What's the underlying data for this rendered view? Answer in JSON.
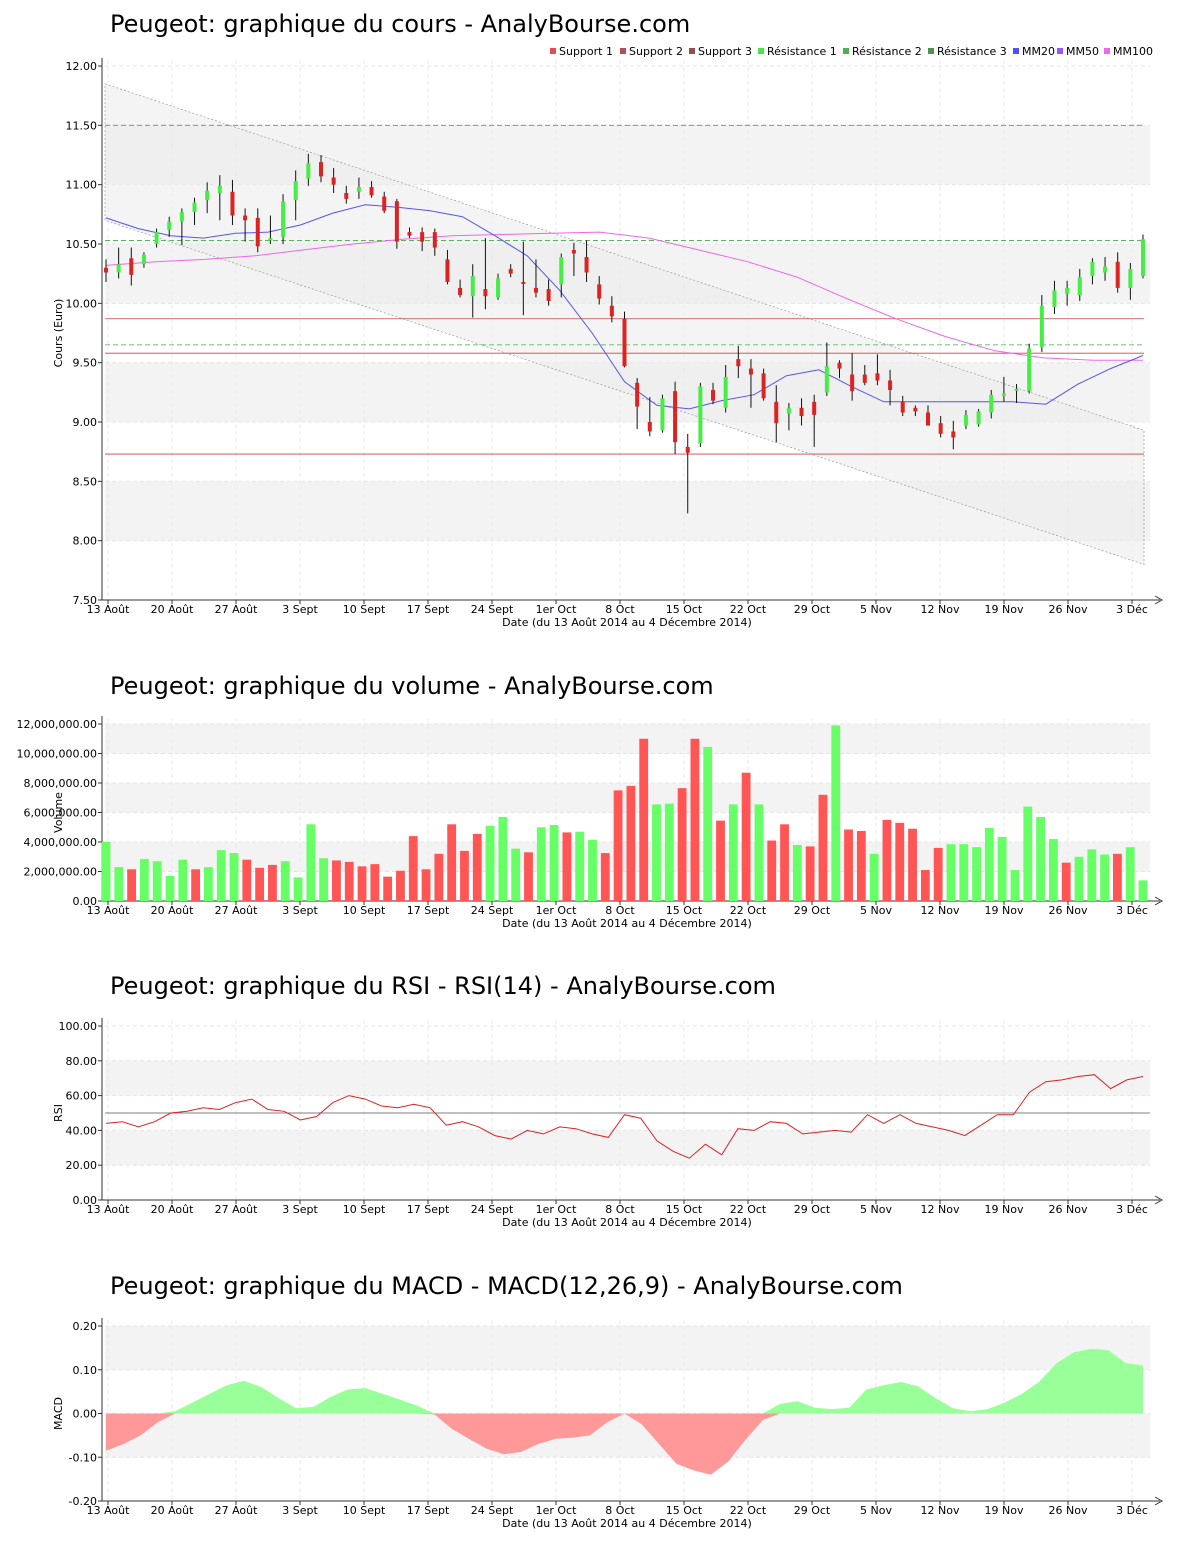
{
  "titles": {
    "price": "Peugeot: graphique du cours - AnalyBourse.com",
    "volume": "Peugeot: graphique du volume - AnalyBourse.com",
    "rsi": "Peugeot: graphique du RSI - RSI(14) - AnalyBourse.com",
    "macd": "Peugeot: graphique du MACD - MACD(12,26,9) - AnalyBourse.com"
  },
  "xlabel": "Date (du 13 Août 2014 au 4 Décembre 2014)",
  "date_ticks": [
    "13 Août",
    "20 Août",
    "27 Août",
    "3 Sept",
    "10 Sept",
    "17 Sept",
    "24 Sept",
    "1er Oct",
    "8 Oct",
    "15 Oct",
    "22 Oct",
    "29 Oct",
    "5 Nov",
    "12 Nov",
    "19 Nov",
    "26 Nov",
    "3 Déc"
  ],
  "legend": [
    {
      "label": "Support 1",
      "color": "#e05050"
    },
    {
      "label": "Support 2",
      "color": "#b05050"
    },
    {
      "label": "Support 3",
      "color": "#905050"
    },
    {
      "label": "Résistance 1",
      "color": "#50e050"
    },
    {
      "label": "Résistance 2",
      "color": "#50b050"
    },
    {
      "label": "Résistance 3",
      "color": "#509050"
    },
    {
      "label": "MM20",
      "color": "#5050ff"
    },
    {
      "label": "MM50",
      "color": "#9955ff"
    },
    {
      "label": "MM100",
      "color": "#ee66ee"
    }
  ],
  "colors": {
    "up": "#44ee44",
    "down": "#dd2222",
    "vol_up": "#66ff66",
    "vol_down": "#ff5555",
    "macd_pos": "#99ff99",
    "macd_neg": "#ff9999",
    "rsi_line": "#dd2222",
    "mm20": "#5555ee",
    "mm100": "#ee66ee"
  },
  "chart_data": [
    {
      "type": "candlestick",
      "title": "Peugeot: graphique du cours - AnalyBourse.com",
      "ylabel": "Cours (Euro)",
      "ylim": [
        7.5,
        12.0
      ],
      "yticks": [
        "7.50",
        "8.00",
        "8.50",
        "9.00",
        "9.50",
        "10.00",
        "10.50",
        "11.00",
        "11.50",
        "12.00"
      ],
      "support": [
        9.87,
        9.58,
        8.73
      ],
      "resistance": [
        11.5,
        10.53,
        9.65
      ],
      "ohlc": [
        [
          10.3,
          10.37,
          10.18,
          10.26
        ],
        [
          10.26,
          10.47,
          10.21,
          10.33
        ],
        [
          10.38,
          10.47,
          10.15,
          10.24
        ],
        [
          10.33,
          10.43,
          10.3,
          10.41
        ],
        [
          10.5,
          10.63,
          10.47,
          10.6
        ],
        [
          10.62,
          10.73,
          10.56,
          10.69
        ],
        [
          10.69,
          10.8,
          10.49,
          10.77
        ],
        [
          10.77,
          10.89,
          10.66,
          10.85
        ],
        [
          10.87,
          11.02,
          10.76,
          10.95
        ],
        [
          10.93,
          11.08,
          10.7,
          10.99
        ],
        [
          10.94,
          11.04,
          10.66,
          10.74
        ],
        [
          10.74,
          10.8,
          10.52,
          10.7
        ],
        [
          10.72,
          10.8,
          10.43,
          10.48
        ],
        [
          10.53,
          10.74,
          10.5,
          10.55
        ],
        [
          10.56,
          10.92,
          10.5,
          10.86
        ],
        [
          10.87,
          11.12,
          10.7,
          11.03
        ],
        [
          11.05,
          11.26,
          10.99,
          11.18
        ],
        [
          11.19,
          11.25,
          11.02,
          11.07
        ],
        [
          11.06,
          11.14,
          10.93,
          11.0
        ],
        [
          10.93,
          10.99,
          10.84,
          10.88
        ],
        [
          10.94,
          11.06,
          10.88,
          10.98
        ],
        [
          10.98,
          11.03,
          10.89,
          10.91
        ],
        [
          10.9,
          10.94,
          10.76,
          10.78
        ],
        [
          10.86,
          10.88,
          10.46,
          10.52
        ],
        [
          10.6,
          10.64,
          10.55,
          10.57
        ],
        [
          10.6,
          10.64,
          10.44,
          10.52
        ],
        [
          10.6,
          10.63,
          10.4,
          10.47
        ],
        [
          10.37,
          10.45,
          10.16,
          10.18
        ],
        [
          10.13,
          10.2,
          10.05,
          10.07
        ],
        [
          10.06,
          10.33,
          9.88,
          10.23
        ],
        [
          10.12,
          10.55,
          9.95,
          10.06
        ],
        [
          10.05,
          10.25,
          10.03,
          10.21
        ],
        [
          10.29,
          10.33,
          10.22,
          10.25
        ],
        [
          10.18,
          10.52,
          9.9,
          10.17
        ],
        [
          10.13,
          10.37,
          10.05,
          10.09
        ],
        [
          10.12,
          10.2,
          9.98,
          10.02
        ],
        [
          10.16,
          10.42,
          10.05,
          10.39
        ],
        [
          10.45,
          10.51,
          10.23,
          10.42
        ],
        [
          10.39,
          10.53,
          10.18,
          10.26
        ],
        [
          10.16,
          10.23,
          9.99,
          10.04
        ],
        [
          9.98,
          10.06,
          9.84,
          9.89
        ],
        [
          9.87,
          9.93,
          9.46,
          9.47
        ],
        [
          9.33,
          9.37,
          8.94,
          9.13
        ],
        [
          9.0,
          9.21,
          8.88,
          8.92
        ],
        [
          8.93,
          9.23,
          8.91,
          9.2
        ],
        [
          9.26,
          9.34,
          8.73,
          8.83
        ],
        [
          8.79,
          8.9,
          8.23,
          8.74
        ],
        [
          8.82,
          9.33,
          8.79,
          9.3
        ],
        [
          9.27,
          9.33,
          9.15,
          9.18
        ],
        [
          9.12,
          9.48,
          9.08,
          9.38
        ],
        [
          9.53,
          9.64,
          9.37,
          9.47
        ],
        [
          9.45,
          9.53,
          9.12,
          9.4
        ],
        [
          9.41,
          9.45,
          9.18,
          9.2
        ],
        [
          9.17,
          9.31,
          8.83,
          8.99
        ],
        [
          9.07,
          9.16,
          8.93,
          9.12
        ],
        [
          9.12,
          9.2,
          8.97,
          9.05
        ],
        [
          9.17,
          9.23,
          8.79,
          9.06
        ],
        [
          9.25,
          9.67,
          9.22,
          9.47
        ],
        [
          9.5,
          9.52,
          9.37,
          9.45
        ],
        [
          9.4,
          9.58,
          9.18,
          9.26
        ],
        [
          9.4,
          9.48,
          9.31,
          9.33
        ],
        [
          9.41,
          9.57,
          9.31,
          9.35
        ],
        [
          9.35,
          9.44,
          9.14,
          9.27
        ],
        [
          9.17,
          9.22,
          9.05,
          9.08
        ],
        [
          9.12,
          9.14,
          9.05,
          9.09
        ],
        [
          9.08,
          9.14,
          8.97,
          8.97
        ],
        [
          8.99,
          9.05,
          8.87,
          8.9
        ],
        [
          8.92,
          9.01,
          8.77,
          8.87
        ],
        [
          8.97,
          9.1,
          8.94,
          9.06
        ],
        [
          8.98,
          9.11,
          8.96,
          9.09
        ],
        [
          9.08,
          9.27,
          9.03,
          9.23
        ],
        [
          9.22,
          9.38,
          9.17,
          9.24
        ],
        [
          9.28,
          9.32,
          9.16,
          9.28
        ],
        [
          9.26,
          9.66,
          9.24,
          9.62
        ],
        [
          9.63,
          10.07,
          9.59,
          9.98
        ],
        [
          9.97,
          10.19,
          9.91,
          10.11
        ],
        [
          10.08,
          10.19,
          9.98,
          10.13
        ],
        [
          10.07,
          10.29,
          10.02,
          10.22
        ],
        [
          10.23,
          10.38,
          10.16,
          10.35
        ],
        [
          10.26,
          10.39,
          10.19,
          10.31
        ],
        [
          10.35,
          10.43,
          10.09,
          10.13
        ],
        [
          10.13,
          10.34,
          10.03,
          10.29
        ],
        [
          10.23,
          10.58,
          10.21,
          10.54
        ]
      ],
      "mm20": [
        10.72,
        10.63,
        10.57,
        10.55,
        10.59,
        10.6,
        10.66,
        10.76,
        10.83,
        10.81,
        10.78,
        10.73,
        10.57,
        10.4,
        10.11,
        9.75,
        9.34,
        9.14,
        9.11,
        9.18,
        9.23,
        9.39,
        9.44,
        9.3,
        9.17,
        9.17,
        9.17,
        9.17,
        9.17,
        9.15,
        9.32,
        9.45,
        9.56
      ],
      "mm100": [
        10.32,
        10.35,
        10.37,
        10.4,
        10.45,
        10.5,
        10.54,
        10.57,
        10.58,
        10.59,
        10.6,
        10.55,
        10.45,
        10.35,
        10.22,
        10.04,
        9.87,
        9.72,
        9.6,
        9.54,
        9.52,
        9.52
      ]
    },
    {
      "type": "bar",
      "title": "Peugeot: graphique du volume - AnalyBourse.com",
      "ylabel": "Volume",
      "ylim": [
        0,
        12000000
      ],
      "yticks": [
        "0.00",
        "2,000,000.00",
        "4,000,000.00",
        "6,000,000.00",
        "8,000,000.00",
        "10,000,000.00",
        "12,000,000.00"
      ],
      "values": [
        4000000,
        2300000,
        2150000,
        2850000,
        2700000,
        1700000,
        2800000,
        2150000,
        2300000,
        3450000,
        3250000,
        2800000,
        2250000,
        2450000,
        2700000,
        1600000,
        5200000,
        2900000,
        2750000,
        2650000,
        2350000,
        2500000,
        1650000,
        2050000,
        4400000,
        2150000,
        3200000,
        5200000,
        3400000,
        4550000,
        5100000,
        5700000,
        3550000,
        3300000,
        5000000,
        5150000,
        4650000,
        4700000,
        4150000,
        3250000,
        7500000,
        7800000,
        11000000,
        6550000,
        6600000,
        7650000,
        11000000,
        10450000,
        5450000,
        6550000,
        8700000,
        6550000,
        4100000,
        5200000,
        3800000,
        3700000,
        7200000,
        11900000,
        4850000,
        4750000,
        3200000,
        5500000,
        5300000,
        4900000,
        2100000,
        3600000,
        3850000,
        3850000,
        3650000,
        4950000,
        4350000,
        2100000,
        6400000,
        5700000,
        4200000,
        2600000,
        3000000,
        3500000,
        3150000,
        3200000,
        3650000,
        1400000
      ],
      "up": [
        1,
        1,
        0,
        1,
        1,
        1,
        1,
        0,
        1,
        1,
        1,
        0,
        0,
        0,
        1,
        1,
        1,
        1,
        0,
        0,
        0,
        0,
        0,
        0,
        0,
        0,
        0,
        0,
        0,
        0,
        1,
        1,
        1,
        0,
        1,
        1,
        0,
        1,
        1,
        0,
        0,
        0,
        0,
        1,
        1,
        0,
        0,
        1,
        0,
        1,
        0,
        1,
        0,
        0,
        1,
        0,
        0,
        1,
        0,
        0,
        1,
        0,
        0,
        0,
        0,
        0,
        1,
        1,
        1,
        1,
        1,
        1,
        1,
        1,
        1,
        0,
        1,
        1,
        1,
        0,
        1,
        1
      ]
    },
    {
      "type": "line",
      "title": "Peugeot: graphique du RSI - RSI(14) - AnalyBourse.com",
      "ylabel": "RSI",
      "ylim": [
        0,
        100
      ],
      "yticks": [
        "0.00",
        "20.00",
        "40.00",
        "60.00",
        "80.00",
        "100.00"
      ],
      "reference": 50,
      "values": [
        44,
        45,
        42,
        45,
        50,
        51,
        53,
        52,
        56,
        58,
        52,
        51,
        46,
        48,
        56,
        60,
        58,
        54,
        53,
        55,
        53,
        43,
        45,
        42,
        37,
        35,
        40,
        38,
        42,
        41,
        38,
        36,
        49,
        47,
        34,
        28,
        24,
        32,
        26,
        41,
        40,
        45,
        44,
        38,
        39,
        40,
        39,
        49,
        44,
        49,
        44,
        42,
        40,
        37,
        43,
        49,
        49,
        62,
        68,
        69,
        71,
        72,
        64,
        69,
        71
      ]
    },
    {
      "type": "area",
      "title": "Peugeot: graphique du MACD - MACD(12,26,9) - AnalyBourse.com",
      "ylabel": "MACD",
      "ylim": [
        -0.2,
        0.2
      ],
      "yticks": [
        "-0.20",
        "-0.10",
        "0.00",
        "0.10",
        "0.20"
      ],
      "values": [
        -0.085,
        -0.07,
        -0.05,
        -0.02,
        0.005,
        0.025,
        0.045,
        0.065,
        0.075,
        0.06,
        0.035,
        0.012,
        0.015,
        0.038,
        0.055,
        0.058,
        0.045,
        0.032,
        0.018,
        -0.002,
        -0.035,
        -0.058,
        -0.08,
        -0.093,
        -0.088,
        -0.07,
        -0.058,
        -0.055,
        -0.05,
        -0.02,
        0.0,
        -0.025,
        -0.07,
        -0.115,
        -0.13,
        -0.14,
        -0.11,
        -0.06,
        -0.015,
        0.022,
        0.028,
        0.013,
        0.01,
        0.013,
        0.055,
        0.065,
        0.072,
        0.062,
        0.035,
        0.012,
        0.005,
        0.01,
        0.025,
        0.045,
        0.073,
        0.115,
        0.14,
        0.148,
        0.145,
        0.115,
        0.11
      ]
    }
  ]
}
